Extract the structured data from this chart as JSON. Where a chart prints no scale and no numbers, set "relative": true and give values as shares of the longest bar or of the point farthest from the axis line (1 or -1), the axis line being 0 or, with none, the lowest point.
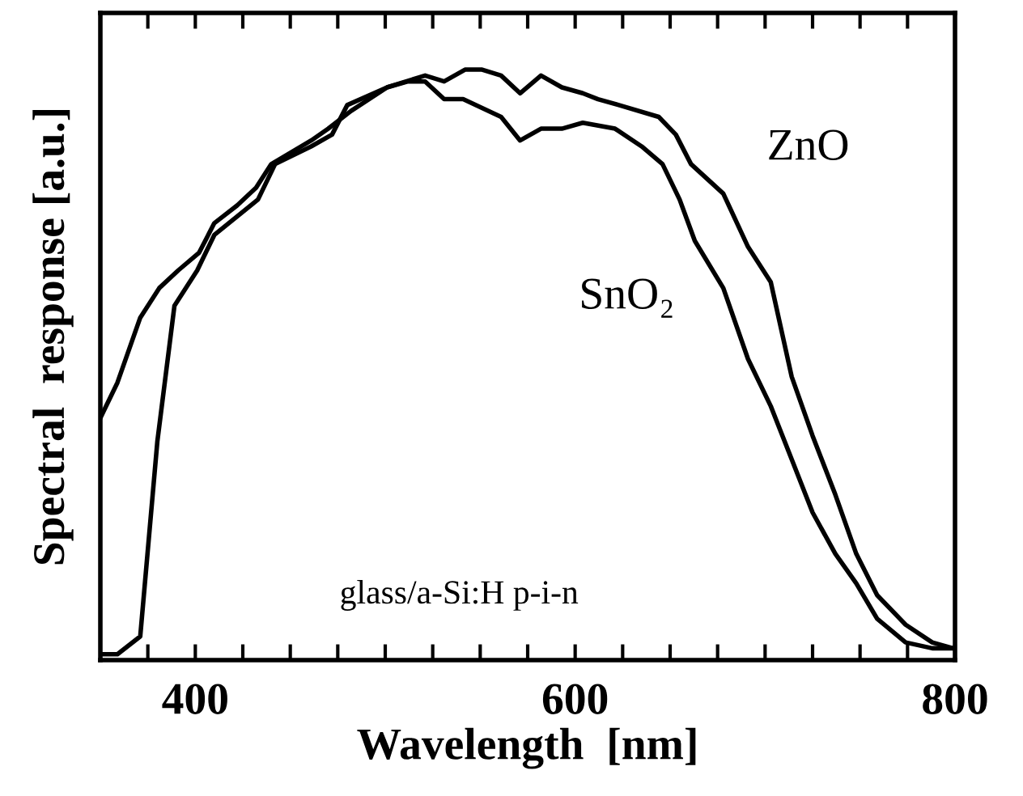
{
  "chart_data": {
    "type": "line",
    "relative": true,
    "xlabel": "Wavelength  [nm]",
    "ylabel": "Spectral  response [a.u.]",
    "annotations": [
      "glass/a-Si:H p-i-n"
    ],
    "xlim": [
      350,
      800
    ],
    "xticks": [
      {
        "value": 375,
        "label": null
      },
      400,
      {
        "value": 425,
        "label": null
      },
      {
        "value": 450,
        "label": null
      },
      {
        "value": 475,
        "label": null
      },
      {
        "value": 500,
        "label": null
      },
      {
        "value": 525,
        "label": null
      },
      {
        "value": 550,
        "label": null
      },
      {
        "value": 575,
        "label": null
      },
      600,
      {
        "value": 625,
        "label": null
      },
      {
        "value": 650,
        "label": null
      },
      {
        "value": 675,
        "label": null
      },
      {
        "value": 700,
        "label": null
      },
      {
        "value": 725,
        "label": null
      },
      {
        "value": 750,
        "label": null
      },
      {
        "value": 775,
        "label": null
      },
      800
    ],
    "tick_labels": "x",
    "grid": false,
    "legend": false,
    "marker": "none",
    "line_style": "solid",
    "series": [
      {
        "name": "ZnO",
        "color": "#000000",
        "x": [
          350,
          359,
          371,
          380,
          389,
          401,
          410,
          433,
          442,
          461,
          472,
          480,
          501,
          521,
          531,
          542,
          551,
          561,
          571,
          582,
          593,
          604,
          612,
          623,
          644,
          653,
          661,
          678,
          691,
          703,
          714,
          725,
          737,
          748,
          759,
          774,
          788,
          799
        ],
        "values": [
          0.01,
          0.01,
          0.04,
          0.37,
          0.6,
          0.66,
          0.72,
          0.78,
          0.84,
          0.87,
          0.89,
          0.94,
          0.97,
          0.99,
          0.98,
          1.0,
          1.0,
          0.99,
          0.96,
          0.99,
          0.97,
          0.96,
          0.95,
          0.94,
          0.92,
          0.89,
          0.84,
          0.79,
          0.7,
          0.64,
          0.48,
          0.38,
          0.28,
          0.18,
          0.11,
          0.06,
          0.03,
          0.02
        ]
      },
      {
        "name": "SnO₂",
        "color": "#000000",
        "x": [
          350,
          359,
          371,
          381,
          391,
          402,
          410,
          422,
          432,
          440,
          461,
          470,
          482,
          501,
          512,
          521,
          531,
          541,
          561,
          571,
          582,
          593,
          604,
          621,
          635,
          646,
          655,
          663,
          678,
          691,
          703,
          714,
          725,
          737,
          748,
          759,
          774,
          788,
          799
        ],
        "values": [
          0.41,
          0.47,
          0.58,
          0.63,
          0.66,
          0.69,
          0.74,
          0.77,
          0.8,
          0.84,
          0.88,
          0.9,
          0.93,
          0.97,
          0.98,
          0.98,
          0.95,
          0.95,
          0.92,
          0.88,
          0.9,
          0.9,
          0.91,
          0.9,
          0.87,
          0.84,
          0.78,
          0.71,
          0.63,
          0.51,
          0.43,
          0.34,
          0.25,
          0.18,
          0.13,
          0.07,
          0.03,
          0.02,
          0.02
        ]
      }
    ]
  }
}
